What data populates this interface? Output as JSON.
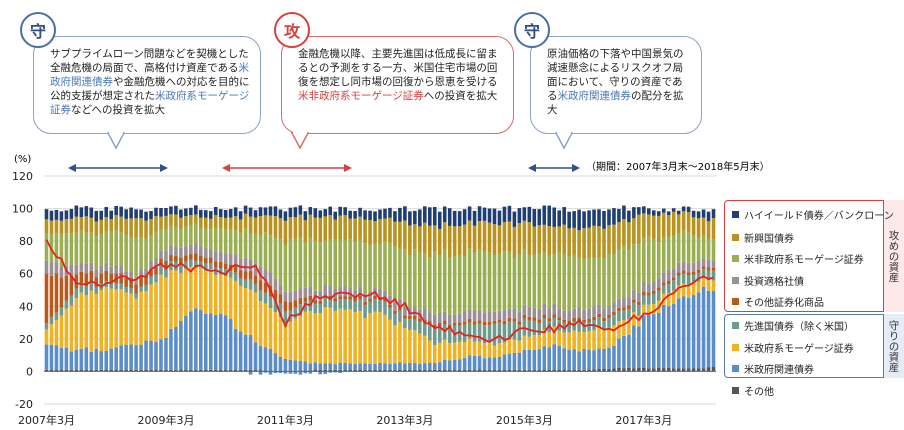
{
  "callouts": [
    {
      "badge": "守",
      "segments": [
        {
          "t": "サブプライムローン問題などを契機とした全融危機の局面で、高格付け資産であ"
        },
        {
          "t": "る"
        },
        {
          "t": "米政府関連債券",
          "c": "blue"
        },
        {
          "t": "や金融危機への対応を目的に公的支援が想定された"
        },
        {
          "t": "米政府系モーゲージ証券",
          "c": "blue"
        },
        {
          "t": "などへの投資を拡大"
        }
      ]
    },
    {
      "badge": "攻",
      "segments": [
        {
          "t": "金融危機以降、主要先進国は低成長に留まるとの予測をする一方、米国住宅市場の回復を想定し同市場の回復から恩恵を受ける"
        },
        {
          "t": "米非政府系モーゲージ証券",
          "c": "red"
        },
        {
          "t": "への投資を拡大"
        }
      ]
    },
    {
      "badge": "守",
      "segments": [
        {
          "t": "原油価格の下落や中国景気の減速懸念によるリスクオフ局面において、守りの資産である"
        },
        {
          "t": "米政府関連債券",
          "c": "blue"
        },
        {
          "t": "の配分を拡大"
        }
      ]
    }
  ],
  "period_note": "（期間：2007年3月末～2018年5月末）",
  "legend_group_labels": {
    "attack": "攻めの資産",
    "defense": "守りの資産"
  },
  "colors": {
    "hy": "#1f3f73",
    "em": "#b8931f",
    "nonagency": "#9aaf52",
    "ig": "#9a8f96",
    "other_sec": "#b85a1e",
    "dev": "#6f9b8e",
    "agency_mbs": "#efb223",
    "agency": "#5b8ec9",
    "other": "#555555",
    "line": "#e8201a"
  },
  "chart_data": {
    "type": "bar",
    "stacked": true,
    "ylabel": "(%)",
    "ylim": [
      -20,
      120
    ],
    "yticks": [
      -20,
      0,
      20,
      40,
      60,
      80,
      100,
      120
    ],
    "xlim": [
      "2007-03",
      "2018-05"
    ],
    "xtick_labels": [
      "2007年3月",
      "2009年3月",
      "2011年3月",
      "2013年3月",
      "2015年3月",
      "2017年3月"
    ],
    "grid": true,
    "legend_placement": "right",
    "series_keys": [
      "other",
      "agency",
      "agency_mbs",
      "dev",
      "other_sec",
      "ig",
      "nonagency",
      "em",
      "hy"
    ],
    "series_names": {
      "hy": "ハイイールド債券／バンクローン",
      "em": "新興国債券",
      "nonagency": "米非政府系モーゲージ証券",
      "ig": "投資適格社債",
      "other_sec": "その他証券化商品",
      "dev": "先進国債券（除く米国）",
      "agency_mbs": "米政府系モーゲージ証券",
      "agency": "米政府関連債券",
      "other": "その他"
    },
    "legend_attack": [
      "hy",
      "em",
      "nonagency",
      "ig",
      "other_sec"
    ],
    "legend_defense": [
      "dev",
      "agency_mbs",
      "agency"
    ],
    "legend_plain": [
      "other"
    ],
    "line_series_name": "",
    "line_comment": "red line = cumulative share of attack-type assets (estimated)",
    "anchors": {
      "dates": [
        "2007-03",
        "2007-09",
        "2008-03",
        "2008-09",
        "2009-03",
        "2009-09",
        "2010-03",
        "2010-09",
        "2011-03",
        "2011-09",
        "2012-03",
        "2012-09",
        "2013-03",
        "2013-09",
        "2014-03",
        "2014-09",
        "2015-03",
        "2015-09",
        "2016-03",
        "2016-09",
        "2017-03",
        "2017-09",
        "2018-03",
        "2018-05"
      ],
      "other": [
        1,
        1,
        1,
        1,
        1,
        1,
        1,
        1,
        0,
        1,
        1,
        1,
        1,
        1,
        1,
        1,
        1,
        1,
        1,
        2,
        2,
        2,
        2,
        3
      ],
      "agency": [
        15,
        12,
        12,
        16,
        20,
        38,
        32,
        18,
        8,
        4,
        4,
        4,
        4,
        4,
        8,
        8,
        12,
        14,
        12,
        14,
        30,
        40,
        48,
        46
      ],
      "agency_mbs": [
        10,
        32,
        38,
        30,
        38,
        24,
        26,
        28,
        22,
        32,
        32,
        30,
        24,
        12,
        10,
        8,
        8,
        10,
        12,
        12,
        6,
        8,
        6,
        6
      ],
      "dev": [
        4,
        6,
        4,
        3,
        6,
        4,
        4,
        6,
        8,
        6,
        6,
        8,
        6,
        10,
        10,
        12,
        10,
        6,
        6,
        6,
        6,
        6,
        6,
        6
      ],
      "other_sec": [
        30,
        8,
        6,
        6,
        4,
        4,
        4,
        6,
        6,
        2,
        2,
        2,
        2,
        2,
        2,
        2,
        2,
        2,
        2,
        2,
        2,
        2,
        2,
        2
      ],
      "ig": [
        8,
        6,
        5,
        4,
        6,
        6,
        6,
        8,
        6,
        6,
        6,
        5,
        6,
        6,
        6,
        6,
        6,
        6,
        6,
        6,
        6,
        6,
        5,
        5
      ],
      "nonagency": [
        18,
        20,
        20,
        22,
        12,
        12,
        14,
        18,
        30,
        30,
        30,
        30,
        32,
        36,
        36,
        36,
        34,
        32,
        32,
        30,
        28,
        20,
        14,
        14
      ],
      "em": [
        8,
        9,
        8,
        12,
        8,
        6,
        8,
        10,
        14,
        14,
        14,
        14,
        17,
        18,
        18,
        18,
        18,
        18,
        18,
        18,
        16,
        14,
        12,
        12
      ],
      "hy": [
        6,
        6,
        6,
        6,
        5,
        5,
        5,
        5,
        6,
        5,
        5,
        6,
        8,
        11,
        9,
        9,
        9,
        11,
        11,
        10,
        4,
        2,
        5,
        6
      ],
      "line": [
        82,
        52,
        55,
        58,
        65,
        63,
        62,
        67,
        30,
        45,
        48,
        47,
        40,
        28,
        22,
        20,
        25,
        26,
        30,
        26,
        35,
        48,
        57,
        58
      ]
    }
  }
}
